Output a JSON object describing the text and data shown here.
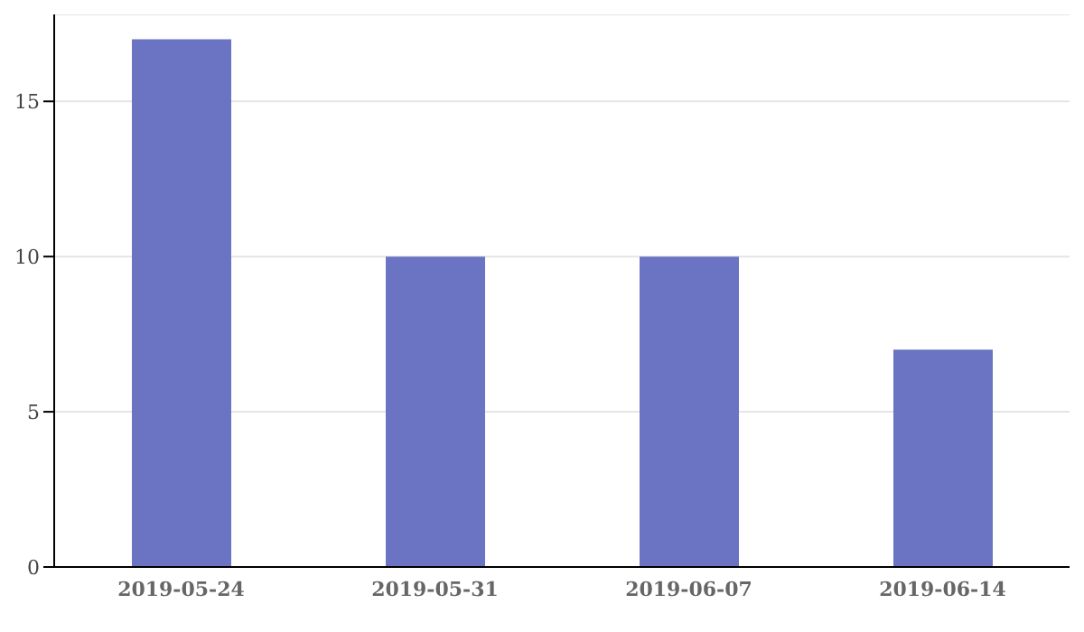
{
  "chart_data": {
    "type": "bar",
    "categories": [
      "2019-05-24",
      "2019-05-31",
      "2019-06-07",
      "2019-06-14"
    ],
    "values": [
      17,
      10,
      10,
      7
    ],
    "color": "#6b73c3",
    "ylim": [
      0,
      17.8
    ],
    "yticks": [
      0,
      5,
      10,
      15
    ],
    "grid": "y",
    "legend": false
  }
}
